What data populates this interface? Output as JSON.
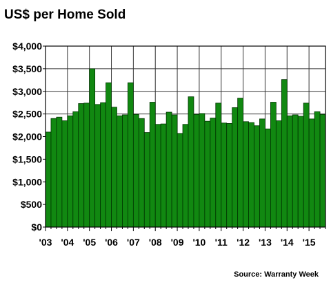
{
  "title": "US$ per Home Sold",
  "source": "Source: Warranty Week",
  "colors": {
    "bar": "#118811",
    "bar_stroke": "#003300",
    "grid": "#333333"
  },
  "chart_data": {
    "type": "bar",
    "title": "US$ per Home Sold",
    "xlabel": "",
    "ylabel": "",
    "ylim": [
      0,
      4000
    ],
    "yticks": [
      0,
      500,
      1000,
      1500,
      2000,
      2500,
      3000,
      3500,
      4000
    ],
    "ytick_labels": [
      "$0",
      "$500",
      "$1,000",
      "$1,500",
      "$2,000",
      "$2,500",
      "$3,000",
      "$3,500",
      "$4,000"
    ],
    "xtick_labels": [
      "'03",
      "'04",
      "'05",
      "'06",
      "'07",
      "'08",
      "'09",
      "'10",
      "'11",
      "'12",
      "'13",
      "'14",
      "'15"
    ],
    "grid": true,
    "periods": "quarterly, 2003 Q1 to 2015 Q3",
    "values": [
      2100,
      2400,
      2430,
      2350,
      2460,
      2550,
      2730,
      2740,
      3500,
      2710,
      2750,
      3190,
      2650,
      2460,
      2480,
      3190,
      2490,
      2400,
      2090,
      2760,
      2270,
      2280,
      2540,
      2480,
      2070,
      2270,
      2880,
      2490,
      2510,
      2340,
      2410,
      2740,
      2300,
      2290,
      2640,
      2850,
      2330,
      2310,
      2240,
      2390,
      2170,
      2760,
      2350,
      3260,
      2460,
      2480,
      2450,
      2740,
      2390,
      2550,
      2490
    ]
  }
}
